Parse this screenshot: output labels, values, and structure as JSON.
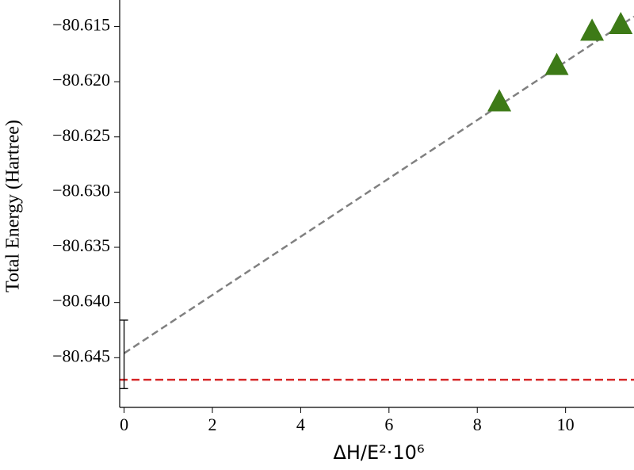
{
  "chart_data": {
    "type": "scatter",
    "x_label": "ΔH/E²·10⁶",
    "y_label": "Total Energy (Hartree)",
    "xlim": [
      -0.1,
      11.55
    ],
    "ylim": [
      -80.6495,
      -80.6126
    ],
    "xticks": [
      0,
      2,
      4,
      6,
      8,
      10
    ],
    "yticks": [
      {
        "value": -80.615,
        "label": "−80.615"
      },
      {
        "value": -80.62,
        "label": "−80.620"
      },
      {
        "value": -80.625,
        "label": "−80.625"
      },
      {
        "value": -80.63,
        "label": "−80.630"
      },
      {
        "value": -80.635,
        "label": "−80.635"
      },
      {
        "value": -80.64,
        "label": "−80.640"
      },
      {
        "value": -80.645,
        "label": "−80.645"
      }
    ],
    "points": {
      "color": "#3d7a17",
      "x": [
        8.5,
        9.8,
        10.6,
        11.25
      ],
      "values": [
        -80.6219,
        -80.6186,
        -80.6155,
        -80.6149
      ]
    },
    "fit_line": {
      "color": "#808080",
      "x": [
        0,
        11.55
      ],
      "values": [
        -80.6446,
        -80.6141
      ]
    },
    "error_bar": {
      "x": 0,
      "value": -80.6447,
      "error": 0.0031
    },
    "reference_line": {
      "color": "#d62728",
      "value": -80.647
    }
  }
}
